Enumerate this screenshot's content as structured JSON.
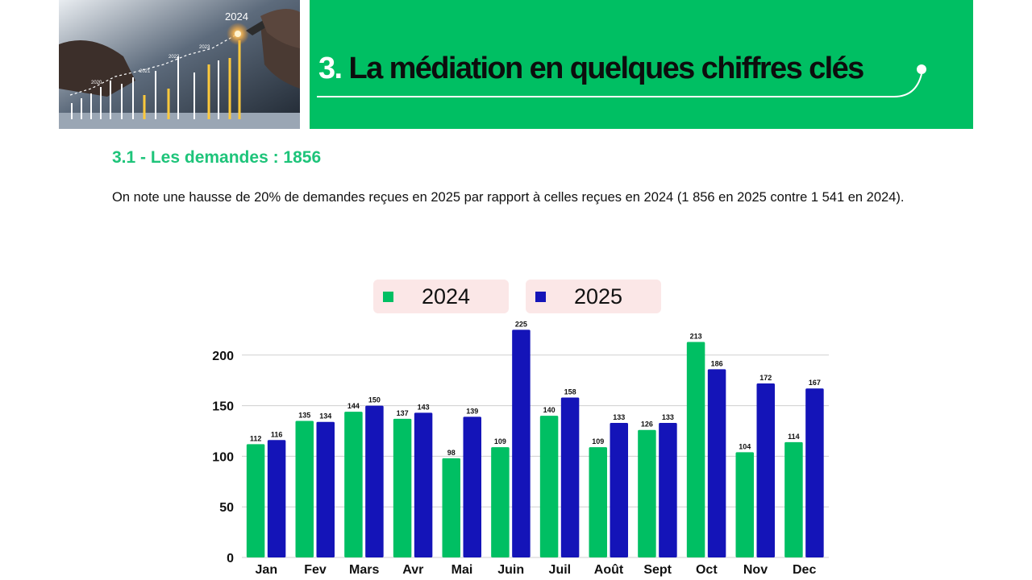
{
  "banner": {
    "number": "3.",
    "title": "La médiation en quelques chiffres clés"
  },
  "hero_image": {
    "year_label": "2024",
    "years": [
      "2020",
      "2021",
      "2022",
      "2023"
    ]
  },
  "section": {
    "heading": "3.1 - Les demandes : 1856",
    "intro": "On note une hausse de 20% de demandes reçues en 2025 par rapport à celles reçues en 2024 (1 856 en 2025 contre 1 541 en 2024)."
  },
  "colors": {
    "green": "#00bf63",
    "blue": "#1414b8",
    "legend_bg": "#fbe7e7"
  },
  "chart_data": {
    "type": "bar",
    "categories": [
      "Jan",
      "Fev",
      "Mars",
      "Avr",
      "Mai",
      "Juin",
      "Juil",
      "Août",
      "Sept",
      "Oct",
      "Nov",
      "Dec"
    ],
    "series": [
      {
        "name": "2024",
        "color": "#00bf63",
        "values": [
          112,
          135,
          144,
          137,
          98,
          109,
          140,
          109,
          126,
          213,
          104,
          114
        ]
      },
      {
        "name": "2025",
        "color": "#1414b8",
        "values": [
          116,
          134,
          150,
          143,
          139,
          225,
          158,
          133,
          133,
          186,
          172,
          167
        ]
      }
    ],
    "y_ticks": [
      0,
      50,
      100,
      150,
      200
    ],
    "ylim": [
      0,
      225
    ],
    "grid": true,
    "legend_position": "top"
  }
}
